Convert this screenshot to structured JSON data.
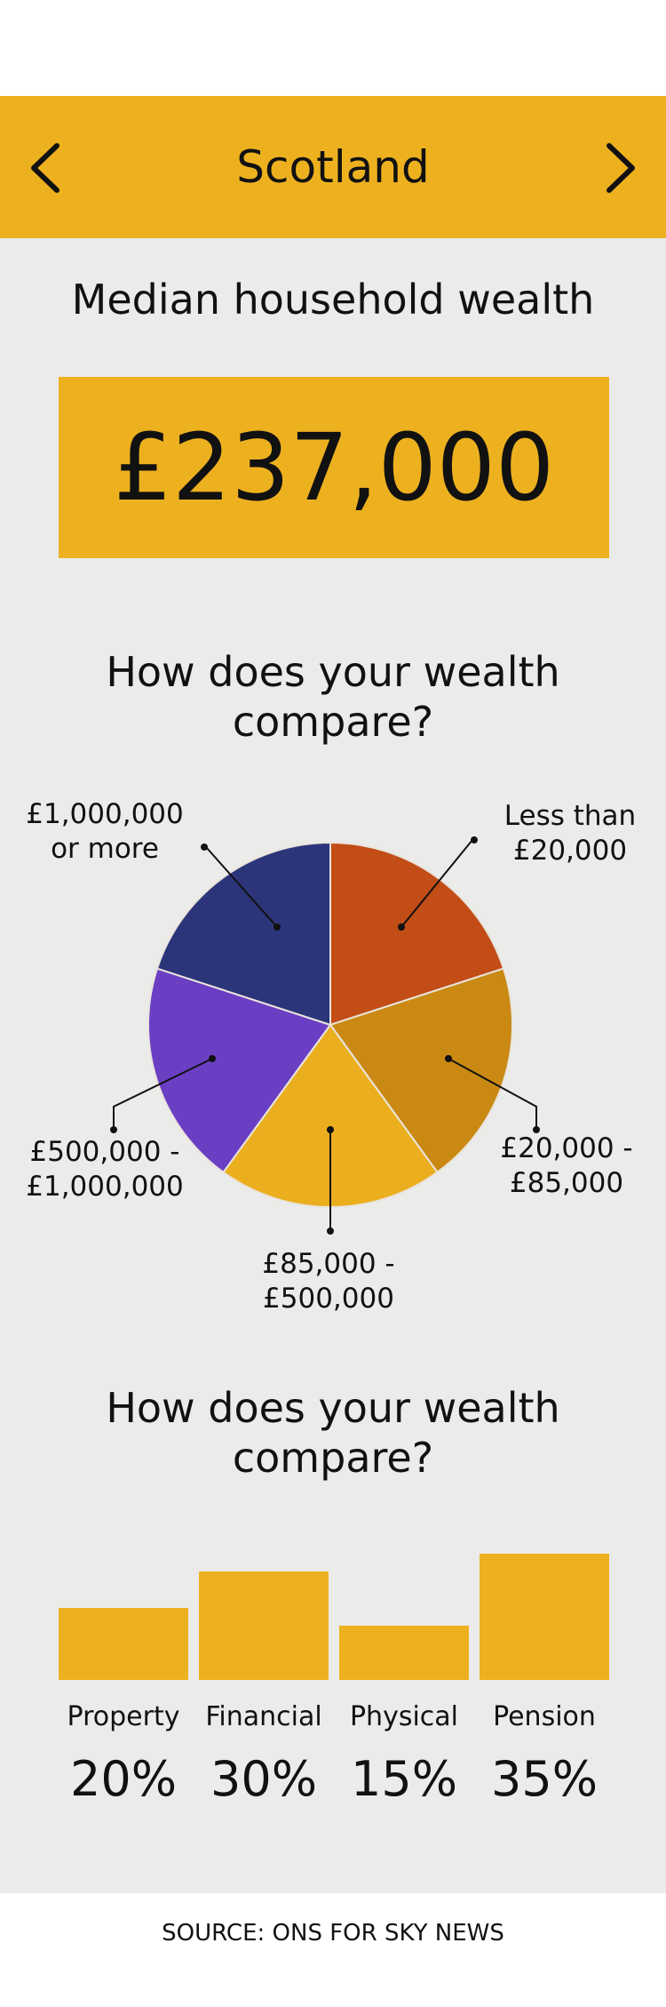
{
  "header": {
    "title": "Scotland",
    "background": "#edb11f"
  },
  "median": {
    "title": "Median household wealth",
    "value": "£237,000"
  },
  "pie_section": {
    "title_line1": "How does your wealth",
    "title_line2": "compare?"
  },
  "bar_section": {
    "title_line1": "How does your wealth",
    "title_line2": "compare?"
  },
  "source": "SOURCE: ONS FOR SKY NEWS",
  "colors": {
    "panel": "#ebebea",
    "accent": "#edb11f"
  },
  "chart_data": [
    {
      "type": "pie",
      "title": "",
      "slices": [
        {
          "line1": "Less than",
          "line2": "£20,000",
          "value": 20,
          "color": "#c24d17"
        },
        {
          "line1": "£20,000 -",
          "line2": "£85,000",
          "value": 20,
          "color": "#c98913"
        },
        {
          "line1": "£85,000 -",
          "line2": "£500,000",
          "value": 20,
          "color": "#ebae1e"
        },
        {
          "line1": "£500,000 -",
          "line2": "£1,000,000",
          "value": 20,
          "color": "#6a3fc4"
        },
        {
          "line1": "£1,000,000",
          "line2": "or more",
          "value": 20,
          "color": "#2c357a"
        }
      ]
    },
    {
      "type": "bar",
      "title": "",
      "categories": [
        "Property",
        "Financial",
        "Physical",
        "Pension"
      ],
      "values": [
        20,
        30,
        15,
        35
      ],
      "labels": [
        "20%",
        "30%",
        "15%",
        "35%"
      ],
      "color": "#edb11f"
    }
  ]
}
